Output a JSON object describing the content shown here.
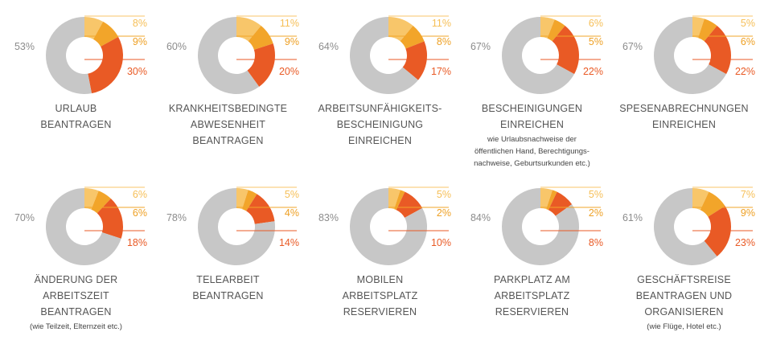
{
  "colors": {
    "gray": "#c7c7c7",
    "light_yellow": "#f8c66a",
    "amber": "#f2a52a",
    "orange": "#e95a25",
    "gray_text": "#8c8c8c",
    "title_text": "#555555"
  },
  "chart_data": [
    {
      "type": "pie",
      "title_lines": [
        "URLAUB",
        "BEANTRAGEN"
      ],
      "subtitle_lines": [],
      "slices": [
        {
          "value": 53,
          "label": "53%"
        },
        {
          "value": 8,
          "label": "8%"
        },
        {
          "value": 9,
          "label": "9%"
        },
        {
          "value": 30,
          "label": "30%"
        }
      ]
    },
    {
      "type": "pie",
      "title_lines": [
        "KRANKHEITSBEDINGTE",
        "ABWESENHEIT",
        "BEANTRAGEN"
      ],
      "subtitle_lines": [],
      "slices": [
        {
          "value": 60,
          "label": "60%"
        },
        {
          "value": 11,
          "label": "11%"
        },
        {
          "value": 9,
          "label": "9%"
        },
        {
          "value": 20,
          "label": "20%"
        }
      ]
    },
    {
      "type": "pie",
      "title_lines": [
        "ARBEITSUNFÄHIGKEITS-",
        "BESCHEINIGUNG",
        "EINREICHEN"
      ],
      "subtitle_lines": [],
      "slices": [
        {
          "value": 64,
          "label": "64%"
        },
        {
          "value": 11,
          "label": "11%"
        },
        {
          "value": 8,
          "label": "8%"
        },
        {
          "value": 17,
          "label": "17%"
        }
      ]
    },
    {
      "type": "pie",
      "title_lines": [
        "BESCHEINIGUNGEN",
        "EINREICHEN"
      ],
      "subtitle_lines": [
        "wie Urlaubsnachweise der",
        "öffentlichen Hand, Berechtigungs-",
        "nachweise, Geburtsurkunden etc.)"
      ],
      "slices": [
        {
          "value": 67,
          "label": "67%"
        },
        {
          "value": 6,
          "label": "6%"
        },
        {
          "value": 5,
          "label": "5%"
        },
        {
          "value": 22,
          "label": "22%"
        }
      ]
    },
    {
      "type": "pie",
      "title_lines": [
        "SPESENABRECHNUNGEN",
        "EINREICHEN"
      ],
      "subtitle_lines": [],
      "slices": [
        {
          "value": 67,
          "label": "67%"
        },
        {
          "value": 5,
          "label": "5%"
        },
        {
          "value": 6,
          "label": "6%"
        },
        {
          "value": 22,
          "label": "22%"
        }
      ]
    },
    {
      "type": "pie",
      "title_lines": [
        "ÄNDERUNG DER",
        "ARBEITSZEIT",
        "BEANTRAGEN"
      ],
      "subtitle_lines": [
        "(wie Teilzeit, Elternzeit etc.)"
      ],
      "slices": [
        {
          "value": 70,
          "label": "70%"
        },
        {
          "value": 6,
          "label": "6%"
        },
        {
          "value": 6,
          "label": "6%"
        },
        {
          "value": 18,
          "label": "18%"
        }
      ]
    },
    {
      "type": "pie",
      "title_lines": [
        "TELEARBEIT",
        "BEANTRAGEN"
      ],
      "subtitle_lines": [],
      "slices": [
        {
          "value": 78,
          "label": "78%"
        },
        {
          "value": 5,
          "label": "5%"
        },
        {
          "value": 4,
          "label": "4%"
        },
        {
          "value": 14,
          "label": "14%"
        }
      ]
    },
    {
      "type": "pie",
      "title_lines": [
        "MOBILEN",
        "ARBEITSPLATZ",
        "RESERVIEREN"
      ],
      "subtitle_lines": [],
      "slices": [
        {
          "value": 83,
          "label": "83%"
        },
        {
          "value": 5,
          "label": "5%"
        },
        {
          "value": 2,
          "label": "2%"
        },
        {
          "value": 10,
          "label": "10%"
        }
      ]
    },
    {
      "type": "pie",
      "title_lines": [
        "PARKPLATZ AM",
        "ARBEITSPLATZ",
        "RESERVIEREN"
      ],
      "subtitle_lines": [],
      "slices": [
        {
          "value": 84,
          "label": "84%"
        },
        {
          "value": 5,
          "label": "5%"
        },
        {
          "value": 2,
          "label": "2%"
        },
        {
          "value": 8,
          "label": "8%"
        }
      ]
    },
    {
      "type": "pie",
      "title_lines": [
        "GESCHÄFTSREISE",
        "BEANTRAGEN UND",
        "ORGANISIEREN"
      ],
      "subtitle_lines": [
        "(wie Flüge, Hotel etc.)"
      ],
      "slices": [
        {
          "value": 61,
          "label": "61%"
        },
        {
          "value": 7,
          "label": "7%"
        },
        {
          "value": 9,
          "label": "9%"
        },
        {
          "value": 23,
          "label": "23%"
        }
      ]
    }
  ]
}
